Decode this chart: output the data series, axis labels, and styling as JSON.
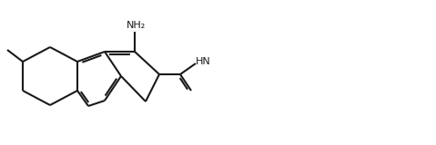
{
  "bg_color": "#ffffff",
  "line_color": "#1a1a1a",
  "line_width": 1.5,
  "figsize": [
    4.79,
    1.6
  ],
  "dpi": 100
}
